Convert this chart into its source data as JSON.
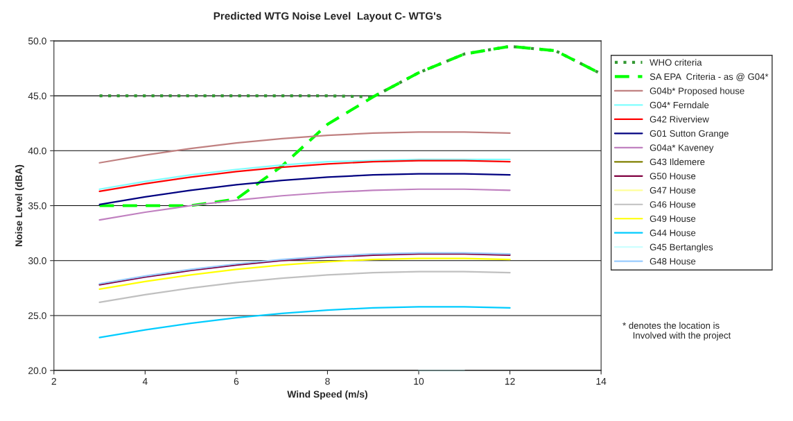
{
  "chart_data": {
    "type": "line",
    "title": "Predicted WTG Noise Level  Layout C- WTG's",
    "xlabel": "Wind Speed (m/s)",
    "ylabel": "Noise Level (dBA)",
    "x": [
      3,
      4,
      5,
      6,
      7,
      8,
      9,
      10,
      11,
      12
    ],
    "xlim": [
      2,
      14
    ],
    "xticks": [
      2,
      4,
      6,
      8,
      10,
      12,
      14
    ],
    "ylim": [
      20,
      50
    ],
    "yticks": [
      {
        "value": 20,
        "label": "20.0"
      },
      {
        "value": 25,
        "label": "25.0"
      },
      {
        "value": 30,
        "label": "30.0"
      },
      {
        "value": 35,
        "label": "35.0"
      },
      {
        "value": 40,
        "label": "40.0"
      },
      {
        "value": 45,
        "label": "45.0"
      },
      {
        "value": 50,
        "label": "50.0"
      }
    ],
    "grid": "y",
    "legend": "right",
    "marker": "none",
    "series": [
      {
        "name": "WHO criteria",
        "color": "#339933",
        "line_style": "dotted",
        "x": [
          3,
          4,
          5,
          6,
          7,
          8,
          9,
          10,
          11,
          12,
          13,
          14
        ],
        "values": [
          45,
          45,
          45,
          45,
          45,
          45,
          44.9,
          47.1,
          48.8,
          49.5,
          49.1,
          47.0
        ]
      },
      {
        "name": "SA EPA  Criteria - as @ G04*",
        "color": "#00ff00",
        "line_style": "dashed",
        "x": [
          3,
          4,
          5,
          6,
          7,
          8,
          9,
          10,
          11,
          12,
          13,
          14
        ],
        "values": [
          35,
          35,
          35,
          35.6,
          38.6,
          42.4,
          44.9,
          47.1,
          48.8,
          49.5,
          49.1,
          47.0
        ]
      },
      {
        "name": "G04b* Proposed house",
        "color": "#c08080",
        "values": [
          38.9,
          39.6,
          40.2,
          40.7,
          41.1,
          41.4,
          41.6,
          41.7,
          41.7,
          41.6
        ]
      },
      {
        "name": "G04* Ferndale",
        "color": "#80ffff",
        "values": [
          36.5,
          37.2,
          37.8,
          38.3,
          38.7,
          39.0,
          39.1,
          39.2,
          39.2,
          39.2
        ]
      },
      {
        "name": "G42 Riverview",
        "color": "#ff0000",
        "values": [
          36.3,
          37.0,
          37.6,
          38.1,
          38.5,
          38.8,
          39.0,
          39.1,
          39.1,
          39.0
        ]
      },
      {
        "name": "G01 Sutton Grange",
        "color": "#000080",
        "values": [
          35.1,
          35.8,
          36.4,
          36.9,
          37.3,
          37.6,
          37.8,
          37.9,
          37.9,
          37.8
        ]
      },
      {
        "name": "G04a* Kaveney",
        "color": "#c080c0",
        "values": [
          33.7,
          34.4,
          35.0,
          35.5,
          35.9,
          36.2,
          36.4,
          36.5,
          36.5,
          36.4
        ]
      },
      {
        "name": "G43 Ildemere",
        "color": "#808000",
        "values": [
          null,
          null,
          null,
          null,
          null,
          null,
          null,
          null,
          null,
          null
        ]
      },
      {
        "name": "G50 House",
        "color": "#800040",
        "values": [
          27.8,
          28.5,
          29.1,
          29.6,
          30.0,
          30.3,
          30.5,
          30.6,
          30.6,
          30.5
        ]
      },
      {
        "name": "G47 House",
        "color": "#ffff99",
        "values": [
          null,
          null,
          null,
          null,
          null,
          null,
          null,
          null,
          null,
          null
        ]
      },
      {
        "name": "G46 House",
        "color": "#c0c0c0",
        "values": [
          26.2,
          26.9,
          27.5,
          28.0,
          28.4,
          28.7,
          28.9,
          29.0,
          29.0,
          28.9
        ]
      },
      {
        "name": "G49 House",
        "color": "#ffff00",
        "values": [
          27.4,
          28.1,
          28.7,
          29.2,
          29.6,
          29.9,
          30.1,
          30.2,
          30.2,
          30.1
        ]
      },
      {
        "name": "G44 House",
        "color": "#00ccff",
        "values": [
          23.0,
          23.7,
          24.3,
          24.8,
          25.2,
          25.5,
          25.7,
          25.8,
          25.8,
          25.7
        ]
      },
      {
        "name": "G45 Bertangles",
        "color": "#ccffff",
        "values": [
          null,
          null,
          null,
          null,
          null,
          null,
          null,
          20.0,
          20.0,
          null
        ]
      },
      {
        "name": "G48 House",
        "color": "#99ccff",
        "values": [
          27.9,
          28.6,
          29.2,
          29.7,
          30.1,
          30.4,
          30.6,
          30.7,
          30.7,
          30.6
        ]
      }
    ],
    "annotations": [
      "* denotes the location is\n    Involved with the project"
    ]
  }
}
